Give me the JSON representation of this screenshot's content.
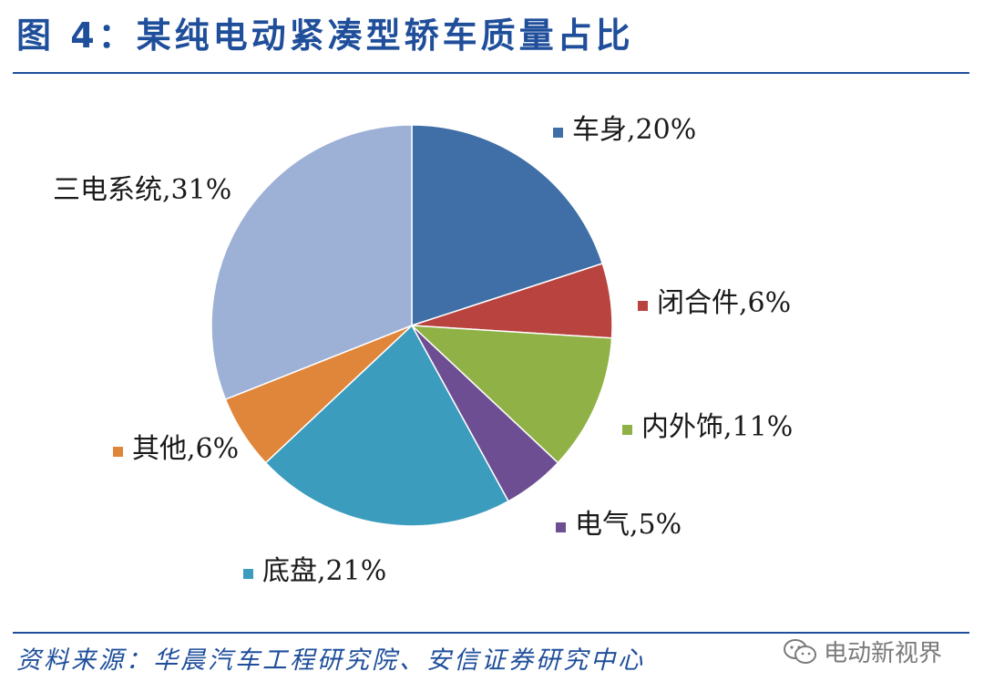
{
  "title": "图 4：某纯电动紧凑型轿车质量占比",
  "source": "资料来源：华晨汽车工程研究院、安信证券研究中心",
  "watermark": {
    "text": "电动新视界",
    "icon": "wechat-icon"
  },
  "chart_data": {
    "type": "pie",
    "title": "",
    "legend": "labels beside slices",
    "slices": [
      {
        "label": "车身",
        "value": 20,
        "display": "车身,20%",
        "color": "#3f6fa6"
      },
      {
        "label": "闭合件",
        "value": 6,
        "display": "闭合件,6%",
        "color": "#b8433f"
      },
      {
        "label": "内外饰",
        "value": 11,
        "display": "内外饰,11%",
        "color": "#8fb146"
      },
      {
        "label": "电气",
        "value": 5,
        "display": "电气,5%",
        "color": "#6e4e92"
      },
      {
        "label": "底盘",
        "value": 21,
        "display": "底盘,21%",
        "color": "#3c9cbd"
      },
      {
        "label": "其他",
        "value": 6,
        "display": "其他,6%",
        "color": "#e0863a"
      },
      {
        "label": "三电系统",
        "value": 31,
        "display": "三电系统,31%",
        "color": "#9db0d6"
      }
    ]
  }
}
